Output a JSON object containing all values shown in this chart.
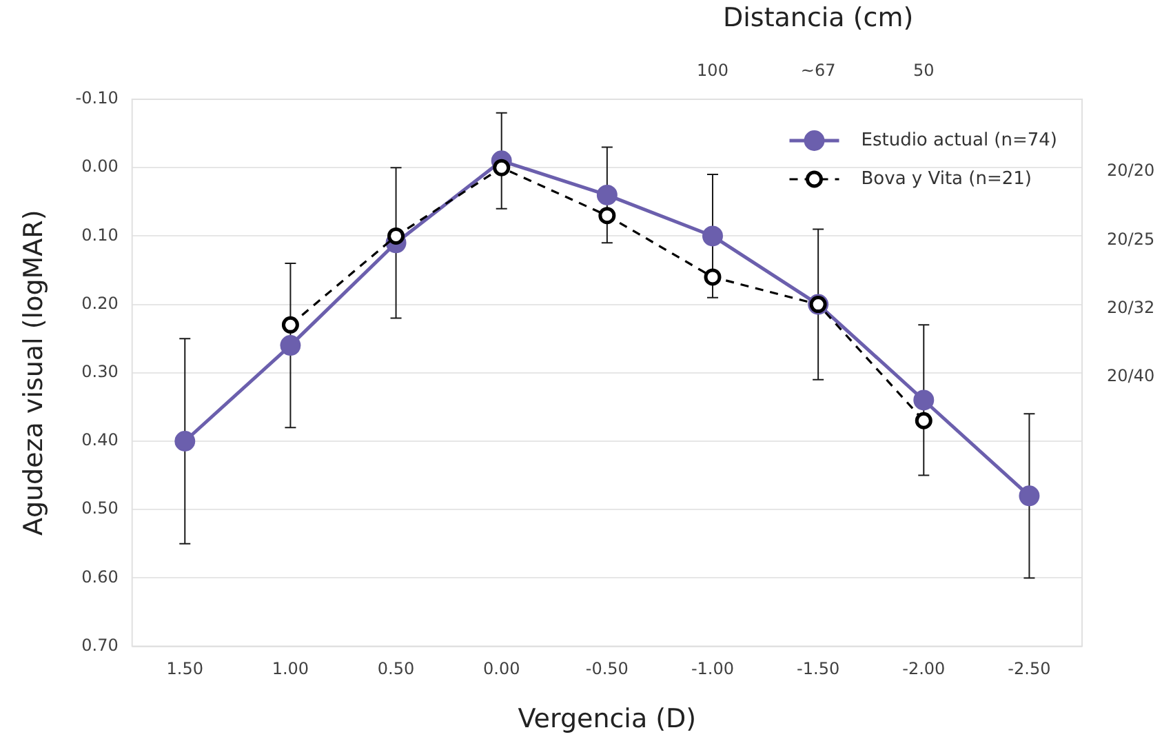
{
  "chart_data": {
    "type": "line",
    "xlabel": "Vergencia (D)",
    "ylabel": "Agudeza visual (logMAR)",
    "x2label": "Distancia (cm)",
    "x": [
      1.5,
      1.0,
      0.5,
      0.0,
      -0.5,
      -1.0,
      -1.5,
      -2.0,
      -2.5
    ],
    "xlim": [
      1.75,
      -2.75
    ],
    "xticks": [
      {
        "value": 1.5,
        "label": "1.50"
      },
      {
        "value": 1.0,
        "label": "1.00"
      },
      {
        "value": 0.5,
        "label": "0.50"
      },
      {
        "value": 0,
        "label": "0.00"
      },
      {
        "value": -0.5,
        "label": "-0.50"
      },
      {
        "value": -1.0,
        "label": "-1.00"
      },
      {
        "value": -1.5,
        "label": "-1.50"
      },
      {
        "value": -2.0,
        "label": "-2.00"
      },
      {
        "value": -2.5,
        "label": "-2.50"
      }
    ],
    "annotations": [
      "100",
      "~67",
      "50",
      "20/20",
      "20/25",
      "20/32",
      "20/40"
    ],
    "ylim": [
      0.7,
      -0.1
    ],
    "yticks": [
      {
        "value": -0.1,
        "label": "-0.10"
      },
      {
        "value": 0,
        "label": "0.00"
      },
      {
        "value": 0.1,
        "label": "0.10"
      },
      {
        "value": 0.2,
        "label": "0.20"
      },
      {
        "value": 0.3,
        "label": "0.30"
      },
      {
        "value": 0.4,
        "label": "0.40"
      },
      {
        "value": 0.5,
        "label": "0.50"
      },
      {
        "value": 0.6,
        "label": "0.60"
      },
      {
        "value": 0.7,
        "label": "0.70"
      }
    ],
    "grid": "y",
    "legend": "top right",
    "marker": "circle",
    "series": [
      {
        "name": "Estudio actual (n=74)",
        "color": "#6b5fad",
        "line_style": "solid",
        "values": [
          0.4,
          0.26,
          0.11,
          -0.01,
          0.04,
          0.1,
          0.2,
          0.34,
          0.48
        ],
        "errors": [
          0.15,
          0.12,
          0.11,
          0.07,
          0.07,
          0.09,
          0.11,
          0.11,
          0.12
        ]
      },
      {
        "name": "Bova y Vita (n=21)",
        "color": "#000000",
        "line_style": "dashed",
        "values": [
          null,
          0.23,
          0.1,
          0.0,
          0.07,
          0.16,
          0.2,
          0.37,
          null
        ],
        "errors": [
          null,
          null,
          null,
          null,
          null,
          null,
          null,
          null,
          null
        ]
      }
    ]
  }
}
